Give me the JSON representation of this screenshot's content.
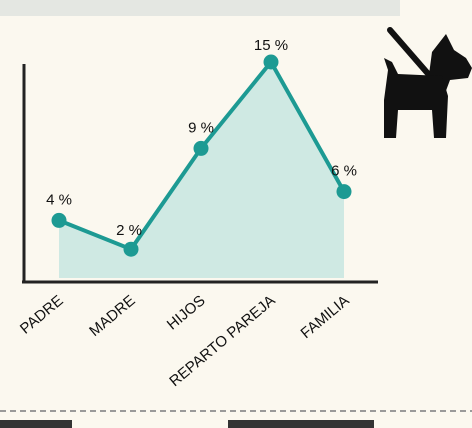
{
  "chart_data": {
    "type": "line",
    "categories": [
      "PADRE",
      "MADRE",
      "HIJOS",
      "REPARTO PAREJA",
      "FAMILIA"
    ],
    "values": [
      4,
      2,
      9,
      15,
      6
    ],
    "data_labels": [
      "4 %",
      "2 %",
      "9 %",
      "15 %",
      "6 %"
    ],
    "title": "",
    "xlabel": "",
    "ylabel": "",
    "ylim": [
      0,
      16
    ],
    "grid": false,
    "legend": "none",
    "area_fill": true
  },
  "colors": {
    "line": "#1d9a93",
    "area": "#cfe9e3",
    "axis": "#222222",
    "background": "#fbf8ef",
    "icon": "#111111"
  },
  "icon": "dog-on-leash-icon"
}
